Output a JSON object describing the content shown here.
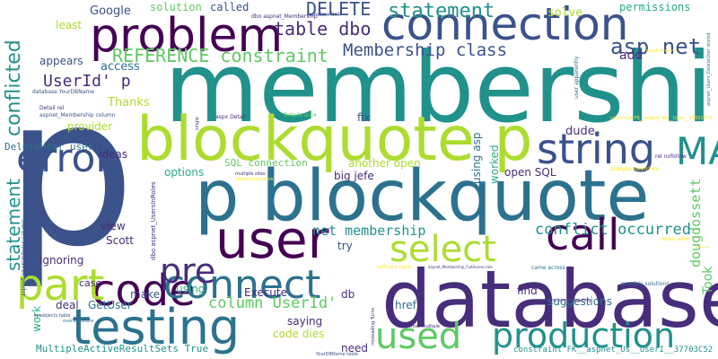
{
  "colors": {
    "background": "#ffffff",
    "dark_purple": "#440154",
    "indigo": "#472d7b",
    "blue": "#3b528b",
    "steel_blue": "#2c728e",
    "teal": "#21918c",
    "sea_green": "#28ae80",
    "green": "#5ec962",
    "lime": "#addc30",
    "yellow": "#fde725"
  },
  "words": [
    {
      "text": "p",
      "color": "#3b528b"
    },
    {
      "text": "membership",
      "color": "#21918c"
    },
    {
      "text": "database",
      "color": "#472d7b"
    },
    {
      "text": "p blockquote",
      "color": "#2c728e"
    },
    {
      "text": "blockquote p",
      "color": "#addc30"
    },
    {
      "text": "problem",
      "color": "#440154"
    },
    {
      "text": "connection",
      "color": "#3b528b"
    },
    {
      "text": "user",
      "color": "#440154"
    },
    {
      "text": "testing",
      "color": "#2c728e"
    },
    {
      "text": "error",
      "color": "#3b528b"
    },
    {
      "text": "code",
      "color": "#440154"
    },
    {
      "text": "MARS",
      "color": "#21918c"
    },
    {
      "text": "string",
      "color": "#3b528b"
    },
    {
      "text": "connect",
      "color": "#2c728e"
    },
    {
      "text": "part",
      "color": "#addc30"
    },
    {
      "text": "call",
      "color": "#440154"
    },
    {
      "text": "select",
      "color": "#addc30"
    },
    {
      "text": "used",
      "color": "#5ec962"
    },
    {
      "text": "production",
      "color": "#21918c"
    },
    {
      "text": "pre",
      "color": "#472d7b"
    },
    {
      "text": "statement",
      "color": "#21918c"
    },
    {
      "text": "DELETE",
      "color": "#3b528b"
    },
    {
      "text": "asp net",
      "color": "#3b528b"
    },
    {
      "text": "table dbo",
      "color": "#472d7b"
    },
    {
      "text": "Membership class",
      "color": "#3b528b"
    },
    {
      "text": "REFERENCE constraint",
      "color": "#5ec962"
    },
    {
      "text": "conflicted",
      "color": "#21918c"
    },
    {
      "text": "statement",
      "color": "#21918c"
    },
    {
      "text": "UserId' p",
      "color": "#472d7b"
    },
    {
      "text": "column UserId'",
      "color": "#5ec962"
    },
    {
      "text": "conflict occurred",
      "color": "#21918c"
    },
    {
      "text": "net membership",
      "color": "#21918c"
    },
    {
      "text": "dougdossett",
      "color": "#5ec962"
    },
    {
      "text": "Took",
      "color": "#5ec962"
    },
    {
      "text": "Google",
      "color": "#3b528b"
    },
    {
      "text": "solution",
      "color": "#5ec962"
    },
    {
      "text": "called",
      "color": "#3b528b"
    },
    {
      "text": "solve",
      "color": "#addc30"
    },
    {
      "text": "permissions",
      "color": "#28ae80"
    },
    {
      "text": "least",
      "color": "#addc30"
    },
    {
      "text": "add",
      "color": "#472d7b"
    },
    {
      "text": "appears",
      "color": "#3b528b"
    },
    {
      "text": "access",
      "color": "#2c728e"
    },
    {
      "text": "Thanks",
      "color": "#addc30"
    },
    {
      "text": "fix",
      "color": "#3b528b"
    },
    {
      "text": "dude",
      "color": "#472d7b"
    },
    {
      "text": "provider",
      "color": "#addc30"
    },
    {
      "text": "using asp",
      "color": "#2c728e"
    },
    {
      "text": "worked",
      "color": "#28ae80"
    },
    {
      "text": "ideas",
      "color": "#472d7b"
    },
    {
      "text": "SQL connection",
      "color": "#5ec962"
    },
    {
      "text": "another open",
      "color": "#addc30"
    },
    {
      "text": "options",
      "color": "#28ae80"
    },
    {
      "text": "big jefe",
      "color": "#472d7b"
    },
    {
      "text": "open SQL",
      "color": "#472d7b"
    },
    {
      "text": "DeleteUser user",
      "color": "#2c728e"
    },
    {
      "text": "view",
      "color": "#472d7b"
    },
    {
      "text": "Scott",
      "color": "#472d7b"
    },
    {
      "text": "ignoring",
      "color": "#472d7b"
    },
    {
      "text": "try",
      "color": "#3b528b"
    },
    {
      "text": "using",
      "color": "#28ae80"
    },
    {
      "text": "Execute",
      "color": "#472d7b"
    },
    {
      "text": "db",
      "color": "#472d7b"
    },
    {
      "text": "find",
      "color": "#472d7b"
    },
    {
      "text": "suggestions",
      "color": "#2c728e"
    },
    {
      "text": "make",
      "color": "#3b528b"
    },
    {
      "text": "deal",
      "color": "#472d7b"
    },
    {
      "text": "GetUser",
      "color": "#2c728e"
    },
    {
      "text": "case",
      "color": "#472d7b"
    },
    {
      "text": "work",
      "color": "#28ae80"
    },
    {
      "text": "saying",
      "color": "#472d7b"
    },
    {
      "text": "code dies",
      "color": "#addc30"
    },
    {
      "text": "href",
      "color": "#2c728e"
    },
    {
      "text": "need",
      "color": "#472d7b"
    },
    {
      "text": "MultipleActiveResultSets True",
      "color": "#21918c"
    },
    {
      "text": "constraint FK__aspnet_Us__UserI__37703C52",
      "color": "#21918c"
    },
    {
      "text": "dbo aspnet_Membership",
      "color": "#472d7b"
    },
    {
      "text": "nofollow link",
      "color": "#3b528b"
    },
    {
      "text": "Detail rel",
      "color": "#472d7b"
    },
    {
      "text": "aspnet_Membership column",
      "color": "#3b528b"
    },
    {
      "text": "database YourDBName",
      "color": "#3b528b"
    },
    {
      "text": "aspx Detail",
      "color": "#472d7b"
    },
    {
      "text": "Details aspx",
      "color": "#5ec962"
    },
    {
      "text": "constraint FK__aspnet_Me__UserI__15502E78",
      "color": "#fde725"
    },
    {
      "text": "rel nofollow",
      "color": "#472d7b"
    },
    {
      "text": "multiple sites",
      "color": "#472d7b"
    },
    {
      "text": "stored procedure",
      "color": "#fde725"
    },
    {
      "text": "seargles searches",
      "color": "#fde725"
    },
    {
      "text": "sufficient rights",
      "color": "#fde725"
    },
    {
      "text": "aspnet_Membership_FullAccess role",
      "color": "#472d7b"
    },
    {
      "text": "came across",
      "color": "#2c728e"
    },
    {
      "text": "possible solutions",
      "color": "#2c728e"
    },
    {
      "text": "rather misleading",
      "color": "#472d7b"
    },
    {
      "text": "across multiple",
      "color": "#472d7b"
    },
    {
      "text": "misleading Turns",
      "color": "#472d7b"
    },
    {
      "text": "YourDBName table",
      "color": "#3b528b"
    },
    {
      "text": "dbo aspnet_UsersInRoles",
      "color": "#472d7b"
    },
    {
      "text": "aspnet_UsersInRoles column",
      "color": "#3b528b"
    },
    {
      "text": "sysobjects table",
      "color": "#3b528b"
    },
    {
      "text": "overall delete",
      "color": "#2c728e"
    },
    {
      "text": "user apparently",
      "color": "#2c728e"
    },
    {
      "text": "aspnet_Users_DeleteUser stored",
      "color": "#2c728e"
    },
    {
      "text": "much Anyone",
      "color": "#fde725"
    },
    {
      "text": "details within",
      "color": "#fde725"
    },
    {
      "text": "delete user",
      "color": "#fde725"
    },
    {
      "text": "single",
      "color": "#472d7b"
    }
  ]
}
